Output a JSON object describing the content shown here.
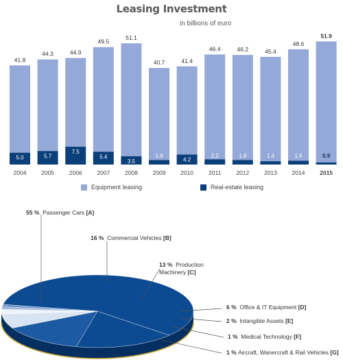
{
  "chart_data": [
    {
      "type": "bar",
      "title": "Leasing Investment",
      "subtitle": "in billions of euro",
      "categories": [
        "2004",
        "2005",
        "2006",
        "2007",
        "2008",
        "2009",
        "2010",
        "2011",
        "2012",
        "2013",
        "2014",
        "2015"
      ],
      "series": [
        {
          "name": "Equipment leasing",
          "color": "#94A9D8",
          "values": [
            41.8,
            44.3,
            44.9,
            49.5,
            51.1,
            40.7,
            41.4,
            46.4,
            46.2,
            45.4,
            48.6,
            51.9
          ]
        },
        {
          "name": "Real-estate leasing",
          "color": "#0B3F7A",
          "values": [
            5.0,
            5.7,
            7.5,
            5.4,
            3.5,
            1.9,
            4.2,
            2.2,
            1.9,
            1.4,
            1.6,
            0.9
          ]
        }
      ],
      "total_labels": [
        "41.8",
        "44.3",
        "44.9",
        "49.5",
        "51.1",
        "40.7",
        "41.4",
        "46.4",
        "46.2",
        "45.4",
        "48.6",
        "51.9"
      ],
      "inner_labels": [
        "5.0",
        "5.7",
        "7.5",
        "5.4",
        "3.5",
        "1.9",
        "4.2",
        "2.2",
        "1.9",
        "1.4",
        "1.6",
        "0.9"
      ],
      "highlight_category": "2015",
      "ylim": [
        0,
        55
      ],
      "grid": false,
      "legend_position": "bottom"
    },
    {
      "type": "pie",
      "style": "3d",
      "slices": [
        {
          "percent_label": "55 %",
          "label": "Passenger Cars",
          "code": "[A]",
          "value": 55,
          "color": "#0C4A92"
        },
        {
          "percent_label": "16 %",
          "label": "Commercial Vehicles",
          "code": "[B]",
          "value": 16,
          "color": "#0C4A92"
        },
        {
          "percent_label": "13 %",
          "label": "Production Machinery",
          "code": "[C]",
          "value": 13,
          "color": "#1C5AA3"
        },
        {
          "percent_label": "6 %",
          "label": "Office & IT Equipment",
          "code": "[D]",
          "value": 6,
          "color": "#D9E4F3"
        },
        {
          "percent_label": "2 %",
          "label": "Intangible Assets",
          "code": "[E]",
          "value": 2,
          "color": "#EEF3FA"
        },
        {
          "percent_label": "1 %",
          "label": "Medical Technology",
          "code": "[F]",
          "value": 1,
          "color": "#9DB6DC"
        },
        {
          "percent_label": "1 %",
          "label": "Aircraft, Wanercraft & Rail Vehicles",
          "code": "[G]",
          "value": 1,
          "color": "#6F93C8"
        }
      ]
    }
  ]
}
